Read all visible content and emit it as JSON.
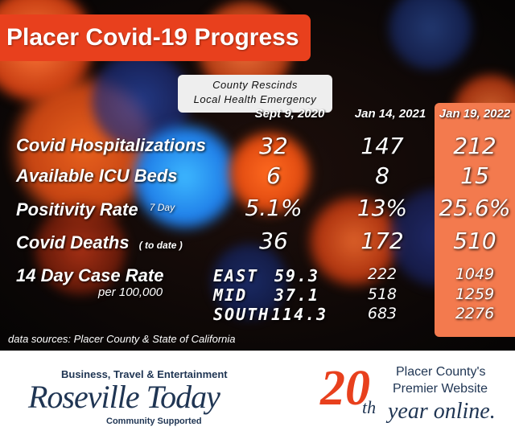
{
  "title": "Placer Covid-19 Progress",
  "rescind_note": {
    "line1": "County Rescinds",
    "line2": "Local Health Emergency"
  },
  "columns": [
    "Sept 9, 2020",
    "Jan 14, 2021",
    "Jan 19, 2022"
  ],
  "rows": {
    "hospitalizations": {
      "label": "Covid Hospitalizations",
      "values": [
        "32",
        "147",
        "212"
      ]
    },
    "icu": {
      "label": "Available ICU Beds",
      "values": [
        "6",
        "8",
        "15"
      ]
    },
    "positivity": {
      "label": "Positivity Rate",
      "sublabel": "7 Day",
      "values": [
        "5.1%",
        "13%",
        "25.6%"
      ]
    },
    "deaths": {
      "label": "Covid Deaths",
      "sublabel": "( to date )",
      "values": [
        "36",
        "172",
        "510"
      ]
    },
    "case_rate": {
      "label": "14 Day Case Rate",
      "sublabel": "per 100,000",
      "regions": [
        {
          "name": "EAST",
          "values": [
            "59.3",
            "222",
            "1049"
          ]
        },
        {
          "name": "MID",
          "values": [
            "37.1",
            "518",
            "1259"
          ]
        },
        {
          "name": "SOUTH",
          "values": [
            "114.3",
            "683",
            "2276"
          ]
        }
      ]
    }
  },
  "sources": "data sources: Placer County & State of California",
  "footer": {
    "roseville_tagline": "Business, Travel & Entertainment",
    "roseville_logo": "Roseville Today",
    "roseville_support": "Community Supported",
    "anniversary_number": "20",
    "anniversary_suffix": "th",
    "placer_line1": "Placer County's",
    "placer_line2": "Premier Website",
    "placer_line3": "year online."
  },
  "colors": {
    "accent": "#e8401d",
    "highlight": "#f37a4e",
    "note_bg": "#eeeeee",
    "brand_navy": "#1f3553"
  }
}
